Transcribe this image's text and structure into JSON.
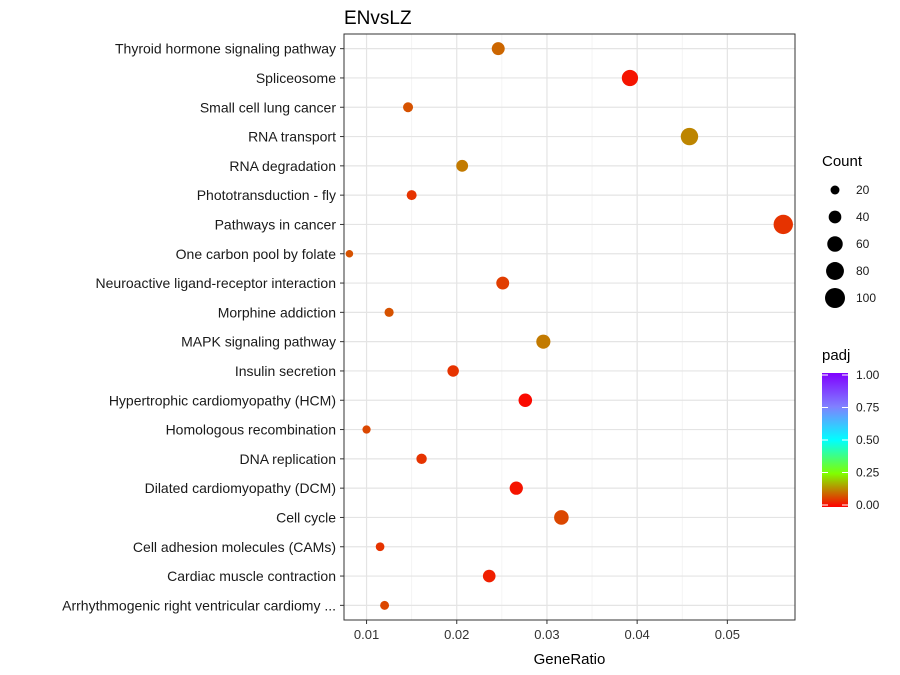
{
  "chart_data": {
    "type": "scatter",
    "title": "ENvsLZ",
    "xlabel": "GeneRatio",
    "ylabel": "",
    "xlim": [
      0.0075,
      0.0575
    ],
    "x_ticks": [
      0.01,
      0.02,
      0.03,
      0.04,
      0.05
    ],
    "x_tick_labels": [
      "0.01",
      "0.02",
      "0.03",
      "0.04",
      "0.05"
    ],
    "grid": true,
    "categories": [
      "Thyroid hormone signaling pathway",
      "Spliceosome",
      "Small cell lung cancer",
      "RNA transport",
      "RNA degradation",
      "Phototransduction - fly",
      "Pathways in cancer",
      "One carbon pool by folate",
      "Neuroactive ligand-receptor interaction",
      "Morphine addiction",
      "MAPK signaling pathway",
      "Insulin secretion",
      "Hypertrophic cardiomyopathy (HCM)",
      "Homologous recombination",
      "DNA replication",
      "Dilated cardiomyopathy (DCM)",
      "Cell cycle",
      "Cell adhesion molecules (CAMs)",
      "Cardiac muscle contraction",
      "Arrhythmogenic right ventricular cardiomy ..."
    ],
    "points": [
      {
        "category": "Thyroid hormone signaling pathway",
        "x": 0.0246,
        "count": 42,
        "padj": 0.1
      },
      {
        "category": "Spliceosome",
        "x": 0.0392,
        "count": 66,
        "padj": 0.02
      },
      {
        "category": "Small cell lung cancer",
        "x": 0.0146,
        "count": 25,
        "padj": 0.08
      },
      {
        "category": "RNA transport",
        "x": 0.0458,
        "count": 76,
        "padj": 0.13
      },
      {
        "category": "RNA degradation",
        "x": 0.0206,
        "count": 35,
        "padj": 0.12
      },
      {
        "category": "Phototransduction - fly",
        "x": 0.015,
        "count": 25,
        "padj": 0.05
      },
      {
        "category": "Pathways in cancer",
        "x": 0.0562,
        "count": 94,
        "padj": 0.05
      },
      {
        "category": "One carbon pool by folate",
        "x": 0.0081,
        "count": 14,
        "padj": 0.08
      },
      {
        "category": "Neuroactive ligand-receptor interaction",
        "x": 0.0251,
        "count": 42,
        "padj": 0.06
      },
      {
        "category": "Morphine addiction",
        "x": 0.0125,
        "count": 21,
        "padj": 0.08
      },
      {
        "category": "MAPK signaling pathway",
        "x": 0.0296,
        "count": 50,
        "padj": 0.12
      },
      {
        "category": "Insulin secretion",
        "x": 0.0196,
        "count": 33,
        "padj": 0.05
      },
      {
        "category": "Hypertrophic cardiomyopathy (HCM)",
        "x": 0.0276,
        "count": 46,
        "padj": 0.01
      },
      {
        "category": "Homologous recombination",
        "x": 0.01,
        "count": 17,
        "padj": 0.07
      },
      {
        "category": "DNA replication",
        "x": 0.0161,
        "count": 27,
        "padj": 0.05
      },
      {
        "category": "Dilated cardiomyopathy (DCM)",
        "x": 0.0266,
        "count": 44,
        "padj": 0.02
      },
      {
        "category": "Cell cycle",
        "x": 0.0316,
        "count": 53,
        "padj": 0.07
      },
      {
        "category": "Cell adhesion molecules (CAMs)",
        "x": 0.0115,
        "count": 19,
        "padj": 0.05
      },
      {
        "category": "Cardiac muscle contraction",
        "x": 0.0236,
        "count": 40,
        "padj": 0.03
      },
      {
        "category": "Arrhythmogenic right ventricular cardiomy ...",
        "x": 0.012,
        "count": 20,
        "padj": 0.07
      }
    ],
    "legend": {
      "placement": "right",
      "size_title": "Count",
      "size_values": [
        20,
        40,
        60,
        80,
        100
      ],
      "color_title": "padj",
      "color_range": [
        0,
        1
      ],
      "color_ticks": [
        1.0,
        0.75,
        0.5,
        0.25,
        0.0
      ],
      "color_tick_labels": [
        "1.00",
        "0.75",
        "0.50",
        "0.25",
        "0.00"
      ]
    }
  }
}
